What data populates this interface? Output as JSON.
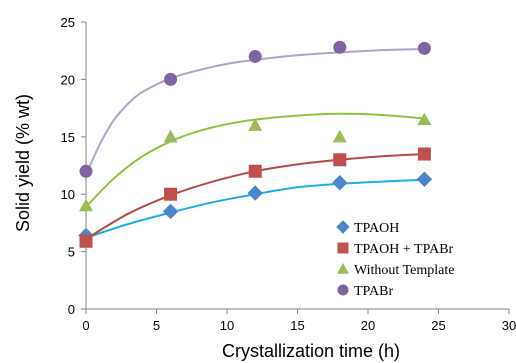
{
  "chart_data": {
    "type": "scatter",
    "title": "",
    "xlabel": "Crystallization time (h)",
    "ylabel": "Solid yield (% wt)",
    "xlim": [
      0,
      30
    ],
    "ylim": [
      0,
      25
    ],
    "xticks": [
      "0",
      "5",
      "10",
      "15",
      "20",
      "25",
      "30"
    ],
    "yticks": [
      "0",
      "5",
      "10",
      "15",
      "20",
      "25"
    ],
    "grid": false,
    "legend_position": "bottom-right",
    "series": [
      {
        "name": "TPAOH",
        "marker": "diamond",
        "color": "#4a86c8",
        "line_color": "#1eaee6",
        "x": [
          0,
          6,
          12,
          18,
          24
        ],
        "y": [
          6.4,
          8.5,
          10.1,
          11.0,
          11.3
        ]
      },
      {
        "name": "TPAOH + TPABr",
        "marker": "square",
        "color": "#c0504d",
        "line_color": "#b84a46",
        "x": [
          0,
          6,
          12,
          18,
          24
        ],
        "y": [
          5.9,
          10.0,
          12.0,
          13.0,
          13.5
        ]
      },
      {
        "name": "Without Template",
        "marker": "triangle",
        "color": "#9bbb59",
        "line_color": "#8cc43c",
        "x": [
          0,
          6,
          12,
          18,
          24
        ],
        "y": [
          9.0,
          15.0,
          16.0,
          15.0,
          16.5
        ]
      },
      {
        "name": "TPABr",
        "marker": "circle",
        "color": "#8064a2",
        "line_color": "#b3a2c7",
        "x": [
          0,
          6,
          12,
          18,
          24
        ],
        "y": [
          12.0,
          20.0,
          22.0,
          22.8,
          22.7
        ]
      }
    ],
    "trendlines": [
      {
        "series": "TPAOH",
        "x": [
          0,
          3,
          6,
          9,
          12,
          15,
          18,
          21,
          24
        ],
        "y": [
          6.2,
          7.4,
          8.4,
          9.3,
          10.0,
          10.6,
          10.9,
          11.1,
          11.25
        ]
      },
      {
        "series": "TPAOH + TPABr",
        "x": [
          0,
          3,
          6,
          9,
          12,
          15,
          18,
          21,
          24
        ],
        "y": [
          6.1,
          8.3,
          9.9,
          11.1,
          12.0,
          12.6,
          13.0,
          13.3,
          13.5
        ]
      },
      {
        "series": "Without Template",
        "x": [
          0,
          2,
          4,
          6,
          8,
          10,
          12,
          15,
          18,
          21,
          24
        ],
        "y": [
          8.9,
          11.4,
          13.3,
          14.6,
          15.5,
          16.1,
          16.5,
          16.85,
          17.0,
          16.9,
          16.6
        ]
      },
      {
        "series": "TPABr",
        "x": [
          0,
          1,
          2,
          3,
          4,
          6,
          8,
          10,
          12,
          15,
          18,
          21,
          24
        ],
        "y": [
          11.7,
          14.4,
          16.5,
          17.9,
          18.9,
          20.1,
          20.8,
          21.35,
          21.7,
          22.1,
          22.35,
          22.55,
          22.65
        ]
      }
    ]
  }
}
